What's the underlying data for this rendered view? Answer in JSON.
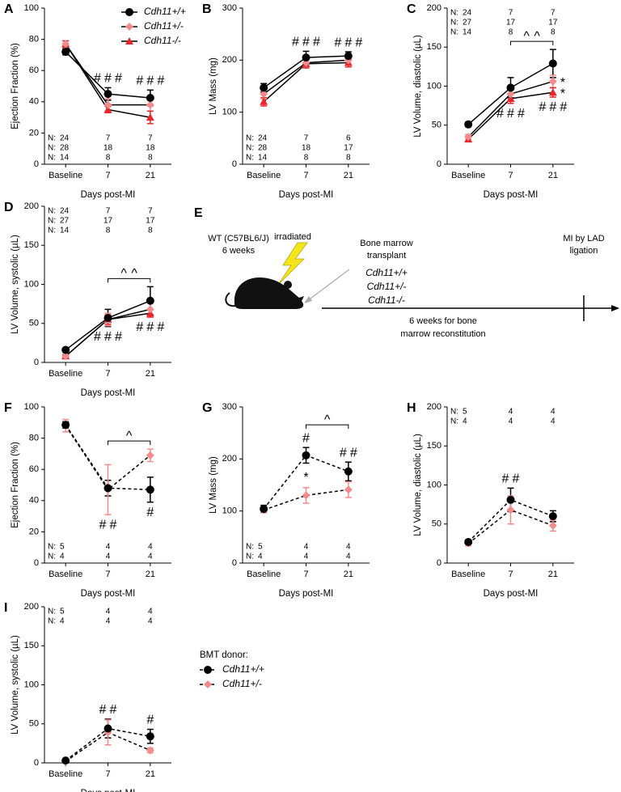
{
  "chart_data": [
    {
      "type": "line",
      "label": "A",
      "ylabel": "Ejection Fraction (%)",
      "xlabel": "Days post-MI",
      "categories": [
        "Baseline",
        "7",
        "21"
      ],
      "ylim": [
        0,
        100
      ],
      "yticks": [
        0,
        20,
        40,
        60,
        80,
        100
      ],
      "line_color": "#000000",
      "line_style": "solid",
      "legend": "upper right",
      "counts_position": "bottom",
      "series": [
        {
          "name": "Cdh11+/+",
          "color": "#000000",
          "marker": "circle",
          "values": [
            72,
            45,
            42.5
          ],
          "errors": [
            2,
            4,
            5
          ]
        },
        {
          "name": "Cdh11+/-",
          "color": "#f28b8b",
          "marker": "diamond",
          "values": [
            77,
            38,
            38
          ],
          "errors": [
            2,
            4,
            4
          ]
        },
        {
          "name": "Cdh11-/-",
          "color": "#e8262b",
          "marker": "triangle",
          "values": [
            77,
            35,
            30
          ],
          "errors": [
            2,
            2,
            4
          ]
        }
      ],
      "counts": [
        {
          "prefix": "N:",
          "color": "#000000",
          "values": [
            24,
            7,
            7
          ]
        },
        {
          "prefix": "N:",
          "color": "#f28b8b",
          "values": [
            28,
            18,
            18
          ]
        },
        {
          "prefix": "N:",
          "color": "#e8262b",
          "values": [
            14,
            8,
            8
          ]
        }
      ],
      "annotations": [
        {
          "category": 1,
          "side": "above",
          "marks": [
            {
              "text": "#",
              "color": "#000000"
            },
            {
              "text": "#",
              "color": "#f28b8b"
            },
            {
              "text": "#",
              "color": "#e8262b"
            }
          ]
        },
        {
          "category": 2,
          "side": "above",
          "marks": [
            {
              "text": "#",
              "color": "#000000"
            },
            {
              "text": "#",
              "color": "#f28b8b"
            },
            {
              "text": "#",
              "color": "#e8262b"
            }
          ]
        }
      ],
      "brackets": []
    },
    {
      "type": "line",
      "label": "B",
      "ylabel": "LV Mass (mg)",
      "xlabel": "Days post-MI",
      "categories": [
        "Baseline",
        "7",
        "21"
      ],
      "ylim": [
        0,
        300
      ],
      "yticks": [
        0,
        100,
        200,
        300
      ],
      "line_color": "#000000",
      "line_style": "solid",
      "counts_position": "bottom",
      "series": [
        {
          "color": "#000000",
          "marker": "circle",
          "values": [
            147,
            205,
            208
          ],
          "errors": [
            8,
            12,
            8
          ]
        },
        {
          "color": "#f28b8b",
          "marker": "diamond",
          "values": [
            135,
            195,
            200
          ],
          "errors": [
            10,
            10,
            10
          ]
        },
        {
          "color": "#e8262b",
          "marker": "triangle",
          "values": [
            120,
            193,
            195
          ],
          "errors": [
            8,
            8,
            8
          ]
        }
      ],
      "counts": [
        {
          "prefix": "N:",
          "color": "#000000",
          "values": [
            24,
            7,
            6
          ]
        },
        {
          "prefix": "N:",
          "color": "#f28b8b",
          "values": [
            28,
            18,
            17
          ]
        },
        {
          "prefix": "N:",
          "color": "#e8262b",
          "values": [
            14,
            8,
            8
          ]
        }
      ],
      "annotations": [
        {
          "category": 1,
          "side": "above",
          "marks": [
            {
              "text": "#",
              "color": "#000000"
            },
            {
              "text": "#",
              "color": "#f28b8b"
            },
            {
              "text": "#",
              "color": "#e8262b"
            }
          ]
        },
        {
          "category": 2,
          "side": "above",
          "marks": [
            {
              "text": "#",
              "color": "#000000"
            },
            {
              "text": "#",
              "color": "#f28b8b"
            },
            {
              "text": "#",
              "color": "#e8262b"
            }
          ]
        }
      ],
      "brackets": []
    },
    {
      "type": "line",
      "label": "C",
      "ylabel": "LV Volume, diastolic (µL)",
      "xlabel": "Days post-MI",
      "categories": [
        "Baseline",
        "7",
        "21"
      ],
      "ylim": [
        0,
        200
      ],
      "yticks": [
        0,
        50,
        100,
        150,
        200
      ],
      "line_color": "#000000",
      "line_style": "solid",
      "counts_position": "top",
      "series": [
        {
          "color": "#000000",
          "marker": "circle",
          "values": [
            51,
            98,
            129
          ],
          "errors": [
            3,
            13,
            18
          ]
        },
        {
          "color": "#f28b8b",
          "marker": "diamond",
          "values": [
            35,
            90,
            106
          ],
          "errors": [
            3,
            8,
            8
          ]
        },
        {
          "color": "#e8262b",
          "marker": "triangle",
          "values": [
            32,
            84,
            92
          ],
          "errors": [
            3,
            6,
            6
          ]
        }
      ],
      "counts": [
        {
          "prefix": "N:",
          "color": "#000000",
          "values": [
            24,
            7,
            7
          ]
        },
        {
          "prefix": "N:",
          "color": "#f28b8b",
          "values": [
            27,
            17,
            17
          ]
        },
        {
          "prefix": "N:",
          "color": "#e8262b",
          "values": [
            14,
            8,
            8
          ]
        }
      ],
      "annotations": [
        {
          "category": 1,
          "side": "below",
          "marks": [
            {
              "text": "#",
              "color": "#000000"
            },
            {
              "text": "#",
              "color": "#f28b8b"
            },
            {
              "text": "#",
              "color": "#e8262b"
            }
          ]
        },
        {
          "category": 2,
          "side": "below",
          "marks": [
            {
              "text": "#",
              "color": "#000000"
            },
            {
              "text": "#",
              "color": "#f28b8b"
            },
            {
              "text": "#",
              "color": "#e8262b"
            }
          ]
        },
        {
          "category": 2,
          "side": "right",
          "series": 1,
          "marks": [
            {
              "text": "*",
              "color": "#f28b8b"
            }
          ]
        },
        {
          "category": 2,
          "side": "right",
          "series": 2,
          "marks": [
            {
              "text": "*",
              "color": "#e8262b"
            }
          ]
        }
      ],
      "brackets": [
        {
          "from": 1,
          "to": 2,
          "marks": [
            {
              "text": "^",
              "color": "#000000"
            },
            {
              "text": "^",
              "color": "#f28b8b"
            }
          ]
        }
      ]
    },
    {
      "type": "line",
      "label": "D",
      "ylabel": "LV Volume, systolic (µL)",
      "xlabel": "Days post-MI",
      "categories": [
        "Baseline",
        "7",
        "21"
      ],
      "ylim": [
        0,
        200
      ],
      "yticks": [
        0,
        50,
        100,
        150,
        200
      ],
      "line_color": "#000000",
      "line_style": "solid",
      "counts_position": "top",
      "series": [
        {
          "color": "#000000",
          "marker": "circle",
          "values": [
            16,
            57,
            79
          ],
          "errors": [
            2,
            11,
            18
          ]
        },
        {
          "color": "#f28b8b",
          "marker": "diamond",
          "values": [
            8,
            55,
            68
          ],
          "errors": [
            2,
            8,
            8
          ]
        },
        {
          "color": "#e8262b",
          "marker": "triangle",
          "values": [
            8,
            55,
            63
          ],
          "errors": [
            2,
            6,
            5
          ]
        }
      ],
      "counts": [
        {
          "prefix": "N:",
          "color": "#000000",
          "values": [
            24,
            7,
            7
          ]
        },
        {
          "prefix": "N:",
          "color": "#f28b8b",
          "values": [
            27,
            17,
            17
          ]
        },
        {
          "prefix": "N:",
          "color": "#e8262b",
          "values": [
            14,
            8,
            8
          ]
        }
      ],
      "annotations": [
        {
          "category": 1,
          "side": "below",
          "marks": [
            {
              "text": "#",
              "color": "#000000"
            },
            {
              "text": "#",
              "color": "#f28b8b"
            },
            {
              "text": "#",
              "color": "#e8262b"
            }
          ]
        },
        {
          "category": 2,
          "side": "below",
          "marks": [
            {
              "text": "#",
              "color": "#000000"
            },
            {
              "text": "#",
              "color": "#f28b8b"
            },
            {
              "text": "#",
              "color": "#e8262b"
            }
          ]
        }
      ],
      "brackets": [
        {
          "from": 1,
          "to": 2,
          "marks": [
            {
              "text": "^",
              "color": "#000000"
            },
            {
              "text": "^",
              "color": "#f28b8b"
            }
          ]
        }
      ]
    },
    {
      "type": "line",
      "label": "F",
      "ylabel": "Ejection Fraction (%)",
      "xlabel": "Days post-MI",
      "categories": [
        "Baseline",
        "7",
        "21"
      ],
      "ylim": [
        0,
        100
      ],
      "yticks": [
        0,
        20,
        40,
        60,
        80,
        100
      ],
      "line_color": "#000000",
      "line_style": "dashed",
      "counts_position": "bottom",
      "series": [
        {
          "color": "#000000",
          "marker": "circle",
          "values": [
            88.5,
            48,
            47
          ],
          "errors": [
            2,
            5,
            8
          ]
        },
        {
          "color": "#f28b8b",
          "marker": "diamond",
          "values": [
            88,
            47,
            69
          ],
          "errors": [
            4,
            16,
            4
          ]
        }
      ],
      "counts": [
        {
          "prefix": "N:",
          "color": "#000000",
          "values": [
            5,
            4,
            4
          ]
        },
        {
          "prefix": "N:",
          "color": "#f28b8b",
          "values": [
            4,
            4,
            4
          ]
        }
      ],
      "annotations": [
        {
          "category": 1,
          "side": "below",
          "marks": [
            {
              "text": "#",
              "color": "#000000"
            },
            {
              "text": "#",
              "color": "#f28b8b"
            }
          ]
        },
        {
          "category": 2,
          "side": "below",
          "marks": [
            {
              "text": "#",
              "color": "#000000"
            }
          ]
        }
      ],
      "brackets": [
        {
          "from": 1,
          "to": 2,
          "marks": [
            {
              "text": "^",
              "color": "#f28b8b"
            }
          ]
        }
      ]
    },
    {
      "type": "line",
      "label": "G",
      "ylabel": "LV Mass (mg)",
      "xlabel": "Days post-MI",
      "categories": [
        "Baseline",
        "7",
        "21"
      ],
      "ylim": [
        0,
        300
      ],
      "yticks": [
        0,
        100,
        200,
        300
      ],
      "line_color": "#000000",
      "line_style": "dashed",
      "counts_position": "bottom",
      "series": [
        {
          "color": "#000000",
          "marker": "circle",
          "values": [
            104,
            207,
            176
          ],
          "errors": [
            7,
            15,
            18
          ]
        },
        {
          "color": "#f28b8b",
          "marker": "diamond",
          "values": [
            102,
            130,
            141
          ],
          "errors": [
            5,
            15,
            15
          ]
        }
      ],
      "counts": [
        {
          "prefix": "N:",
          "color": "#000000",
          "values": [
            5,
            4,
            4
          ]
        },
        {
          "prefix": "N:",
          "color": "#f28b8b",
          "values": [
            4,
            4,
            4
          ]
        }
      ],
      "annotations": [
        {
          "category": 1,
          "side": "above",
          "marks": [
            {
              "text": "#",
              "color": "#000000"
            }
          ]
        },
        {
          "category": 1,
          "side": "between",
          "marks": [
            {
              "text": "*",
              "color": "#000000"
            }
          ]
        },
        {
          "category": 2,
          "side": "above",
          "marks": [
            {
              "text": "#",
              "color": "#000000"
            },
            {
              "text": "#",
              "color": "#f28b8b"
            }
          ]
        }
      ],
      "brackets": [
        {
          "from": 1,
          "to": 2,
          "marks": [
            {
              "text": "^",
              "color": "#000000"
            }
          ]
        }
      ]
    },
    {
      "type": "line",
      "label": "H",
      "ylabel": "LV Volume, diastolic (µL)",
      "xlabel": "Days post-MI",
      "categories": [
        "Baseline",
        "7",
        "21"
      ],
      "ylim": [
        0,
        200
      ],
      "yticks": [
        0,
        50,
        100,
        150,
        200
      ],
      "line_color": "#000000",
      "line_style": "dashed",
      "counts_position": "top",
      "series": [
        {
          "color": "#000000",
          "marker": "circle",
          "values": [
            27,
            81,
            60
          ],
          "errors": [
            2,
            15,
            7
          ]
        },
        {
          "color": "#f28b8b",
          "marker": "diamond",
          "values": [
            25,
            68,
            48
          ],
          "errors": [
            3,
            18,
            7
          ]
        }
      ],
      "counts": [
        {
          "prefix": "N:",
          "color": "#000000",
          "values": [
            5,
            4,
            4
          ]
        },
        {
          "prefix": "N:",
          "color": "#f28b8b",
          "values": [
            4,
            4,
            4
          ]
        }
      ],
      "annotations": [
        {
          "category": 1,
          "side": "above",
          "marks": [
            {
              "text": "#",
              "color": "#000000"
            },
            {
              "text": "#",
              "color": "#f28b8b"
            }
          ]
        }
      ],
      "brackets": []
    },
    {
      "type": "line",
      "label": "I",
      "ylabel": "LV Volume, systolic (µL)",
      "xlabel": "Days post-MI",
      "categories": [
        "Baseline",
        "7",
        "21"
      ],
      "ylim": [
        0,
        200
      ],
      "yticks": [
        0,
        50,
        100,
        150,
        200
      ],
      "line_color": "#000000",
      "line_style": "dashed",
      "counts_position": "top",
      "legend": "outside right",
      "legend_title": "BMT donor:",
      "series": [
        {
          "name": "Cdh11+/+",
          "color": "#000000",
          "marker": "circle",
          "values": [
            3,
            44,
            34
          ],
          "errors": [
            1,
            12,
            9
          ]
        },
        {
          "name": "Cdh11+/-",
          "color": "#f28b8b",
          "marker": "diamond",
          "values": [
            2,
            39,
            16
          ],
          "errors": [
            1,
            16,
            3
          ]
        }
      ],
      "counts": [
        {
          "prefix": "N:",
          "color": "#000000",
          "values": [
            5,
            4,
            4
          ]
        },
        {
          "prefix": "N:",
          "color": "#f28b8b",
          "values": [
            4,
            4,
            4
          ]
        }
      ],
      "annotations": [
        {
          "category": 1,
          "side": "above",
          "marks": [
            {
              "text": "#",
              "color": "#000000"
            },
            {
              "text": "#",
              "color": "#f28b8b"
            }
          ]
        },
        {
          "category": 2,
          "side": "above",
          "marks": [
            {
              "text": "#",
              "color": "#000000"
            }
          ]
        }
      ],
      "brackets": []
    }
  ],
  "diagram": {
    "label": "E",
    "mouse": [
      "WT (C57BL6/J)",
      "6 weeks"
    ],
    "irradiation": "irradiated",
    "transplant": [
      "Bone marrow",
      "transplant"
    ],
    "donors": [
      {
        "name": "Cdh11+/+",
        "color": "#000000"
      },
      {
        "name": "Cdh11+/-",
        "color": "#f28b8b"
      },
      {
        "name": "Cdh11-/-",
        "color": "#e8262b"
      }
    ],
    "endpoint": [
      "MI by LAD",
      "ligation"
    ],
    "interval": [
      "6 weeks for bone",
      "marrow reconstitution"
    ]
  }
}
